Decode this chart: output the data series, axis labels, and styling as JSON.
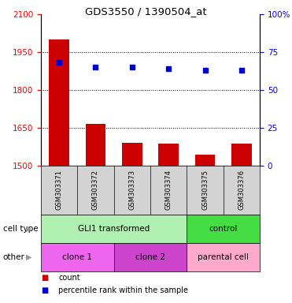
{
  "title": "GDS3550 / 1390504_at",
  "samples": [
    "GSM303371",
    "GSM303372",
    "GSM303373",
    "GSM303374",
    "GSM303375",
    "GSM303376"
  ],
  "bar_values": [
    2000,
    1665,
    1590,
    1588,
    1545,
    1588
  ],
  "percentile_values": [
    68,
    65,
    65,
    64,
    63,
    63
  ],
  "ylim_left": [
    1500,
    2100
  ],
  "ylim_right": [
    0,
    100
  ],
  "yticks_left": [
    1500,
    1650,
    1800,
    1950,
    2100
  ],
  "yticks_right": [
    0,
    25,
    50,
    75,
    100
  ],
  "bar_color": "#cc0000",
  "dot_color": "#0000cc",
  "cell_type_label": "cell type",
  "other_label": "other",
  "cell_type_groups": [
    {
      "label": "GLI1 transformed",
      "color": "#b0f0b0",
      "span": [
        0,
        4
      ]
    },
    {
      "label": "control",
      "color": "#44dd44",
      "span": [
        4,
        6
      ]
    }
  ],
  "other_groups": [
    {
      "label": "clone 1",
      "color": "#ee66ee",
      "span": [
        0,
        2
      ]
    },
    {
      "label": "clone 2",
      "color": "#cc44cc",
      "span": [
        2,
        4
      ]
    },
    {
      "label": "parental cell",
      "color": "#ffaacc",
      "span": [
        4,
        6
      ]
    }
  ],
  "legend_count_label": "count",
  "legend_percentile_label": "percentile rank within the sample"
}
